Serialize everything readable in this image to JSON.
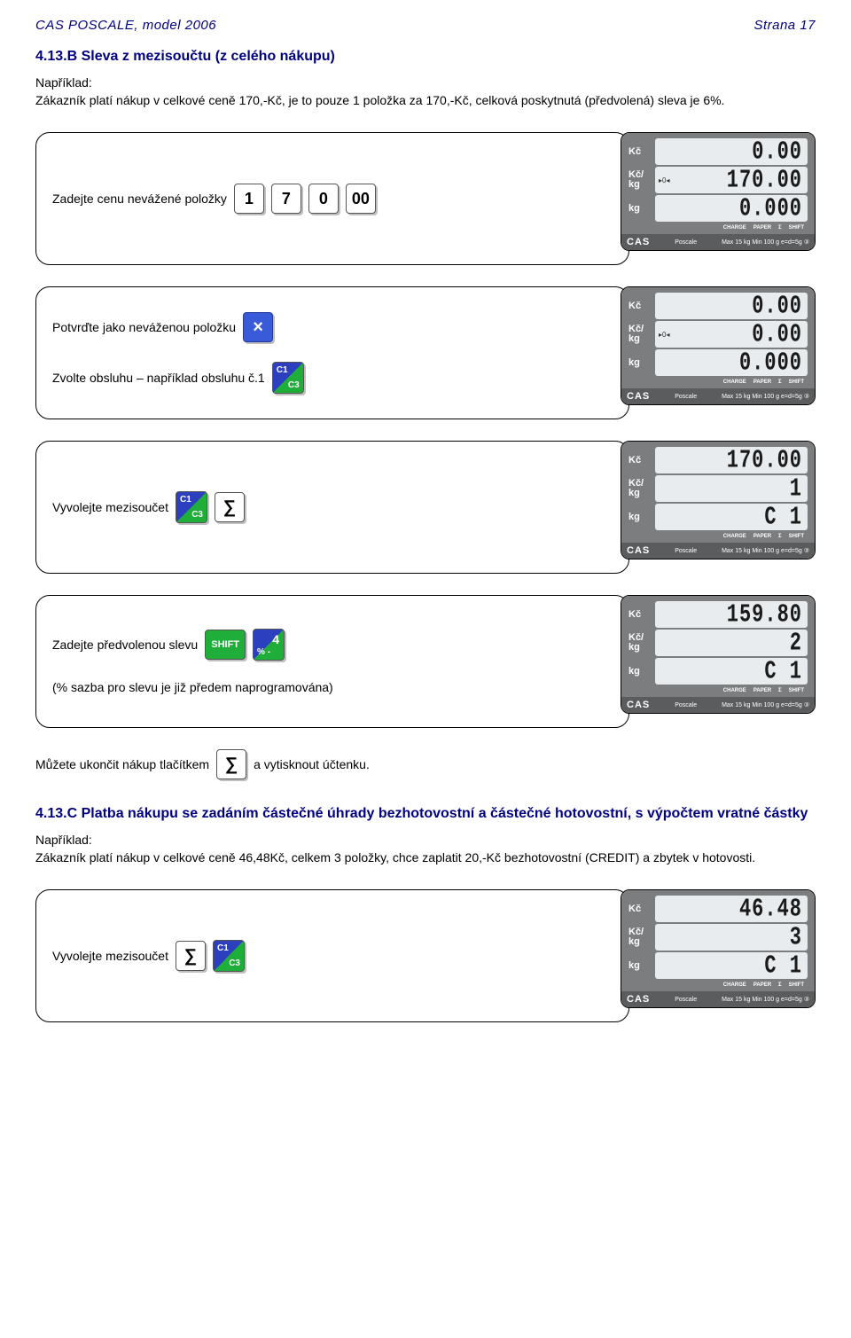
{
  "header": {
    "left": "CAS POSCALE, model 2006",
    "right": "Strana 17"
  },
  "section_b": {
    "title": "4.13.B Sleva z mezisoučtu (z celého nákupu)",
    "example_label": "Například:",
    "example_text": "Zákazník platí nákup v celkové ceně 170,-Kč, je to pouze 1 položka za 170,-Kč, celková poskytnutá (předvolená) sleva je 6%."
  },
  "steps": [
    {
      "lines": [
        {
          "text": "Zadejte cenu nevážené položky",
          "keys": [
            {
              "type": "num",
              "label": "1"
            },
            {
              "type": "num",
              "label": "7"
            },
            {
              "type": "num",
              "label": "0"
            },
            {
              "type": "num",
              "label": "00"
            }
          ]
        }
      ],
      "display": {
        "kc": "0.00",
        "kckg": "170.00",
        "kg": "0.000",
        "zero_row": 2
      }
    },
    {
      "lines": [
        {
          "text": "Potvrďte jako neváženou položku",
          "keys": [
            {
              "type": "x"
            }
          ]
        },
        {
          "text": "Zvolte obsluhu – například obsluhu č.1",
          "keys": [
            {
              "type": "c1"
            }
          ]
        }
      ],
      "display": {
        "kc": "0.00",
        "kckg": "0.00",
        "kg": "0.000",
        "zero_row": 2
      }
    },
    {
      "lines": [
        {
          "text": "Vyvolejte mezisoučet",
          "keys": [
            {
              "type": "c1"
            },
            {
              "type": "sum"
            }
          ]
        }
      ],
      "display": {
        "kc": "170.00",
        "kckg": "1",
        "kg": "C 1"
      }
    },
    {
      "lines": [
        {
          "text": "Zadejte předvolenou slevu",
          "keys": [
            {
              "type": "shift"
            },
            {
              "type": "4pct"
            }
          ]
        },
        {
          "text": "(% sazba pro slevu je již předem naprogramována)",
          "keys": []
        }
      ],
      "display": {
        "kc": "159.80",
        "kckg": "2",
        "kg": "C 1"
      }
    }
  ],
  "after_step4": {
    "pre": "Můžete ukončit nákup tlačítkem",
    "post": "a vytisknout účtenku."
  },
  "section_c": {
    "title": "4.13.C Platba nákupu se zadáním částečné úhrady bezhotovostní a částečné hotovostní, s výpočtem vratné částky",
    "example_label": "Například:",
    "example_text": "Zákazník platí nákup v celkové ceně 46,48Kč, celkem 3 položky, chce zaplatit 20,-Kč bezhotovostní (CREDIT) a zbytek v hotovosti."
  },
  "step_c1": {
    "text": "Vyvolejte mezisoučet",
    "display": {
      "kc": "46.48",
      "kckg": "3",
      "kg": "C 1"
    }
  },
  "keys": {
    "c1_top": "C1",
    "c1_bot": "C3",
    "shift": "SHIFT",
    "four": "4",
    "pct": "% -",
    "sum": "∑",
    "x": "×"
  },
  "panel": {
    "label_kc": "Kč",
    "label_kckg": "Kč/\nkg",
    "label_kg": "kg",
    "status": [
      "CHARGE",
      "PAPER",
      "Σ",
      "SHIFT"
    ],
    "brand": "CAS",
    "model": "Poscale",
    "spec": "Max 15 kg   Min 100 g   e=d=5g ③",
    "zero": "▸0◂"
  },
  "colors": {
    "navy": "#000080",
    "blue_key": "#3a5bd9",
    "green_key": "#1fae3a",
    "panel_bg": "#7b7d7e",
    "lcd_bg": "#e8ecee",
    "brand_bg": "#5a5c5d"
  }
}
